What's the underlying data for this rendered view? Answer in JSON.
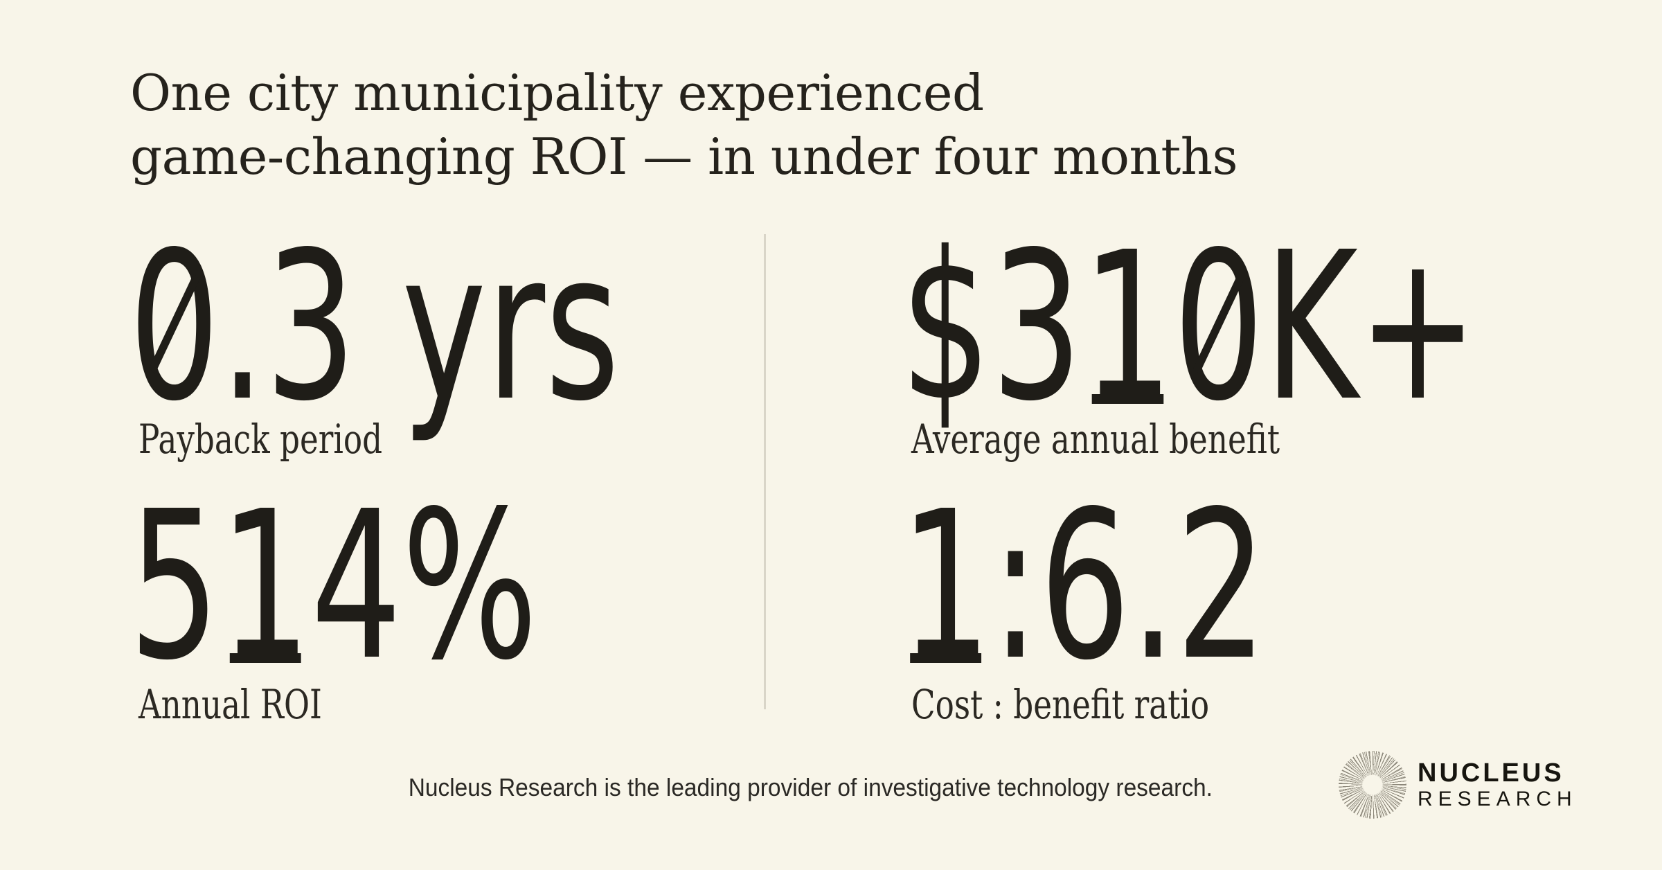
{
  "page": {
    "background_color": "#F8F5E9",
    "text_color": "#25221C",
    "value_color": "#1F1D18",
    "divider_color": "#D9D5C8",
    "logo_burst_color": "#8A8578",
    "logo_text_color": "#17150F"
  },
  "headline": {
    "line1": "One city municipality experienced",
    "line2": "game-changing ROI — in under four months"
  },
  "stats": [
    {
      "value": "0.3 yrs",
      "label": "Payback period"
    },
    {
      "value": "$310K+",
      "label": "Average annual benefit"
    },
    {
      "value": "514%",
      "label": "Annual ROI"
    },
    {
      "value": "1:6.2",
      "label": "Cost : benefit ratio"
    }
  ],
  "footer": {
    "tagline": "Nucleus Research is the leading provider of investigative technology research.",
    "logo": {
      "icon": "starburst-icon",
      "name_top": "NUCLEUS",
      "name_bottom": "RESEARCH"
    }
  },
  "chart_data": {
    "type": "table",
    "title": "One city municipality experienced game-changing ROI — in under four months",
    "metrics": [
      {
        "label": "Payback period",
        "value": "0.3 yrs",
        "numeric": 0.3,
        "unit": "years"
      },
      {
        "label": "Average annual benefit",
        "value": "$310K+",
        "numeric": 310000,
        "unit": "USD"
      },
      {
        "label": "Annual ROI",
        "value": "514%",
        "numeric": 514,
        "unit": "percent"
      },
      {
        "label": "Cost : benefit ratio",
        "value": "1:6.2",
        "numeric": 6.2,
        "unit": "benefit per 1 cost"
      }
    ],
    "source": "Nucleus Research"
  }
}
